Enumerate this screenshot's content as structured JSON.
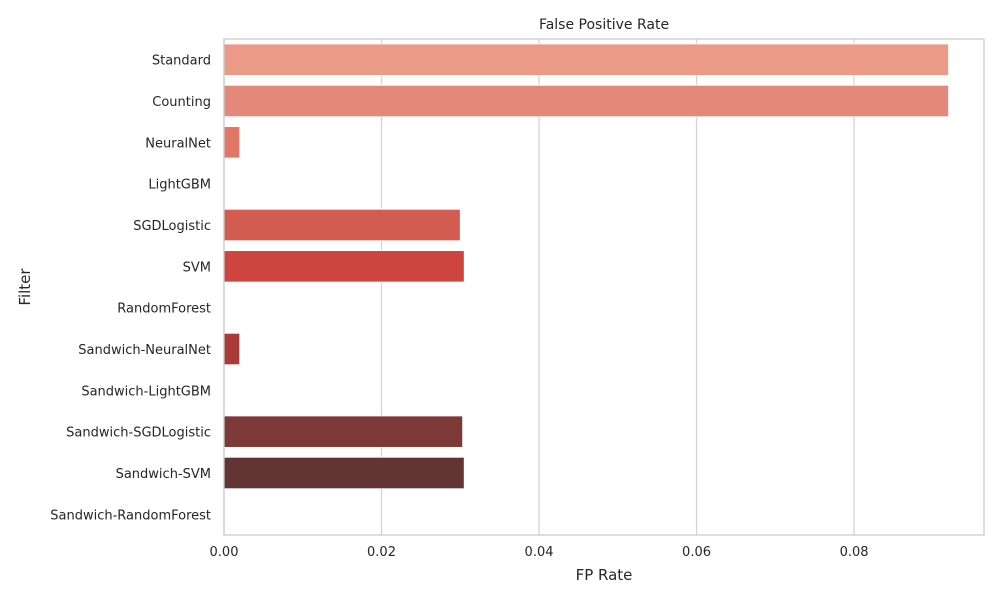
{
  "chart_data": {
    "type": "bar",
    "orientation": "horizontal",
    "title": "False Positive Rate",
    "xlabel": "FP Rate",
    "ylabel": "Filter",
    "xlim": [
      0,
      0.0965
    ],
    "xticks": [
      0.0,
      0.02,
      0.04,
      0.06,
      0.08
    ],
    "xtick_labels": [
      "0.00",
      "0.02",
      "0.04",
      "0.06",
      "0.08"
    ],
    "grid": "vertical",
    "categories": [
      "Standard",
      "Counting",
      "NeuralNet",
      "LightGBM",
      "SGDLogistic",
      "SVM",
      "RandomForest",
      "Sandwich-NeuralNet",
      "Sandwich-LightGBM",
      "Sandwich-SGDLogistic",
      "Sandwich-SVM",
      "Sandwich-RandomForest"
    ],
    "values": [
      0.092,
      0.092,
      0.002,
      0.0,
      0.03,
      0.0305,
      0.0,
      0.002,
      0.0,
      0.0303,
      0.0305,
      0.0
    ],
    "colors": [
      "#ea9a86",
      "#e4887a",
      "#e17769",
      "#dd6658",
      "#d35c50",
      "#ce4540",
      "#c33d3a",
      "#aa3a38",
      "#943a38",
      "#7c3938",
      "#623534",
      "#4a2c2c"
    ]
  }
}
